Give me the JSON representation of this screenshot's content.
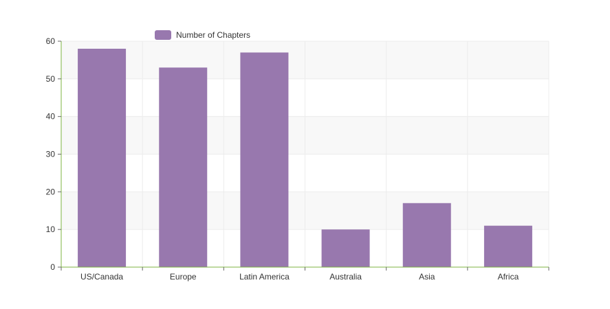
{
  "chart_data": {
    "type": "bar",
    "categories": [
      "US/Canada",
      "Europe",
      "Latin America",
      "Australia",
      "Asia",
      "Africa"
    ],
    "series": [
      {
        "name": "Number of Chapters",
        "values": [
          58,
          53,
          57,
          10,
          17,
          11
        ],
        "color": "#9878ae"
      }
    ],
    "ylim": [
      0,
      60
    ],
    "yticks": [
      0,
      10,
      20,
      30,
      40,
      50,
      60
    ],
    "grid": true,
    "legend_position": "top-left",
    "axis_color": "#7cb342",
    "band_color": "#f8f8f8",
    "grid_color": "#ececec"
  }
}
